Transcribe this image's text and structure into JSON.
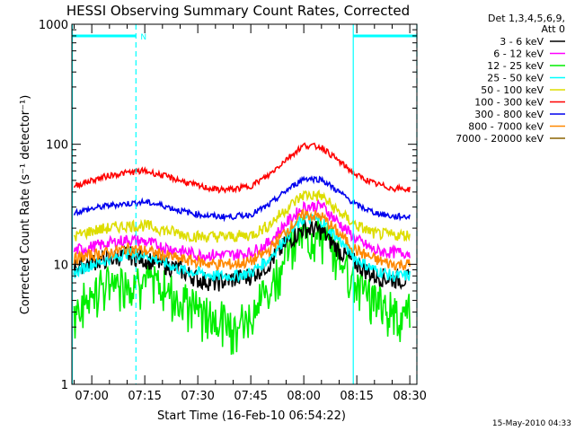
{
  "title": "HESSI Observing Summary Count Rates, Corrected",
  "legend": {
    "header_1": "Det 1,3,4,5,6,9,",
    "header_2": "Att 0"
  },
  "footer_date": "15-May-2010 04:33",
  "chart_data": {
    "type": "line",
    "title": "HESSI Observing Summary Count Rates, Corrected",
    "xlabel": "Start Time (16-Feb-10 06:54:22)",
    "ylabel": "Corrected Count Rate (s⁻¹ detector⁻¹)",
    "y_scale": "log",
    "ylim": [
      1,
      1000
    ],
    "xlim": [
      "06:54:22",
      "08:32:00"
    ],
    "x_tick_labels": [
      "07:00",
      "07:15",
      "07:30",
      "07:45",
      "08:00",
      "08:15",
      "08:30"
    ],
    "y_tick_labels": [
      "1",
      "10",
      "100",
      "1000"
    ],
    "flags": [
      {
        "label": "N",
        "start": "06:54:30",
        "end": "07:12:30"
      },
      {
        "label": "",
        "start": "08:14:00",
        "end": "08:32:00"
      }
    ],
    "vertical_markers": [
      {
        "time": "06:54:30",
        "style": "solid"
      },
      {
        "time": "07:12:30",
        "style": "dashed"
      },
      {
        "time": "08:14:00",
        "style": "solid"
      },
      {
        "time": "08:32:00",
        "style": "dashed"
      }
    ],
    "times": [
      "06:55",
      "07:00",
      "07:05",
      "07:10",
      "07:15",
      "07:20",
      "07:25",
      "07:30",
      "07:35",
      "07:40",
      "07:45",
      "07:50",
      "07:55",
      "08:00",
      "08:05",
      "08:10",
      "08:15",
      "08:20",
      "08:25",
      "08:30"
    ],
    "series": [
      {
        "name": "3 - 6 keV",
        "color": "#000000",
        "values": [
          9.5,
          10.5,
          11,
          12,
          11,
          10,
          9,
          7.5,
          7,
          7.5,
          8,
          10,
          15,
          20,
          19,
          13,
          10,
          8,
          7.5,
          7.5
        ]
      },
      {
        "name": "6 - 12 keV",
        "color": "#ff00ff",
        "values": [
          13,
          14,
          15,
          16,
          15.5,
          14,
          13,
          12,
          12,
          12,
          12.5,
          15,
          22,
          30,
          31,
          22,
          16,
          13,
          12.5,
          12.5
        ]
      },
      {
        "name": "12 - 25 keV",
        "color": "#00ee00",
        "values": [
          4.5,
          6.5,
          7.5,
          8.5,
          8,
          7,
          6,
          4.5,
          4,
          3.5,
          4,
          7,
          14,
          21,
          20,
          13,
          8,
          5.5,
          4.5,
          4.5
        ]
      },
      {
        "name": "25 - 50 keV",
        "color": "#00ffff",
        "values": [
          8.5,
          10,
          11,
          12.5,
          12,
          10.5,
          9,
          8.5,
          8,
          8,
          8.5,
          11,
          17,
          24,
          23,
          16,
          11,
          9,
          8,
          8
        ]
      },
      {
        "name": "50 - 100 keV",
        "color": "#dddd00",
        "values": [
          17,
          19,
          20,
          21,
          21,
          19.5,
          18,
          17,
          17,
          17,
          17.5,
          21,
          29,
          38,
          37,
          27,
          21,
          18,
          17.5,
          17.5
        ]
      },
      {
        "name": "100 - 300 keV",
        "color": "#ff0000",
        "values": [
          45,
          50,
          55,
          58,
          60,
          55,
          50,
          45,
          42,
          42,
          45,
          55,
          75,
          98,
          95,
          72,
          55,
          47,
          43,
          42
        ]
      },
      {
        "name": "300 - 800 keV",
        "color": "#0000ee",
        "values": [
          27,
          29,
          31,
          32,
          33,
          31,
          28,
          26,
          25,
          25,
          26,
          31,
          41,
          52,
          51,
          40,
          31,
          27,
          25,
          25
        ]
      },
      {
        "name": "800 - 7000 keV",
        "color": "#ff8800",
        "values": [
          11,
          12,
          12.5,
          13.5,
          13,
          12,
          11,
          10.5,
          10,
          10,
          10.5,
          13,
          19,
          26,
          25,
          18,
          13,
          11,
          10,
          10
        ]
      },
      {
        "name": "7000 - 20000 keV",
        "color": "#8b6400",
        "values": []
      }
    ]
  }
}
